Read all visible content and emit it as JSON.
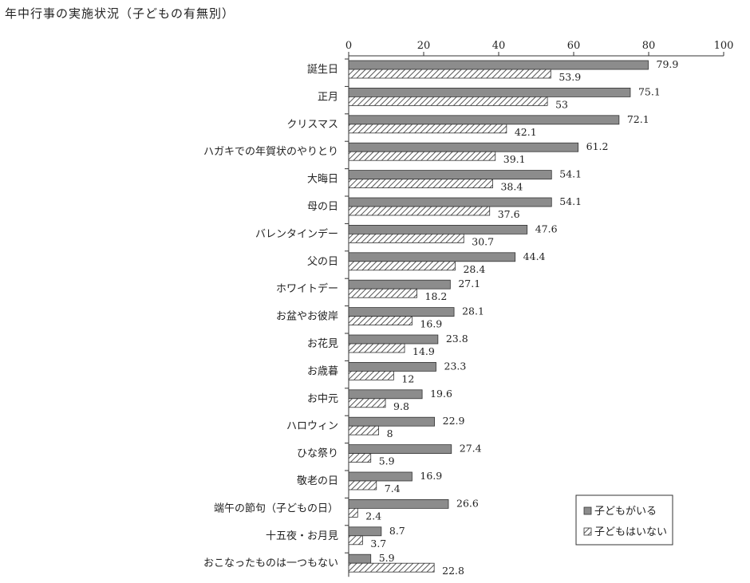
{
  "chart_data": {
    "type": "bar",
    "orientation": "horizontal",
    "title": "年中行事の実施状況（子どもの有無別）",
    "categories": [
      "誕生日",
      "正月",
      "クリスマス",
      "ハガキでの年賀状のやりとり",
      "大晦日",
      "母の日",
      "バレンタインデー",
      "父の日",
      "ホワイトデー",
      "お盆やお彼岸",
      "お花見",
      "お歳暮",
      "お中元",
      "ハロウィン",
      "ひな祭り",
      "敬老の日",
      "端午の節句（子どもの日）",
      "十五夜・お月見",
      "おこなったものは一つもない"
    ],
    "series": [
      {
        "name": "子どもがいる",
        "values": [
          79.9,
          75.1,
          72.1,
          61.2,
          54.1,
          54.1,
          47.6,
          44.4,
          27.1,
          28.1,
          23.8,
          23.3,
          19.6,
          22.9,
          27.4,
          16.9,
          26.6,
          8.7,
          5.9
        ],
        "labels": [
          "79.9",
          "75.1",
          "72.1",
          "61.2",
          "54.1",
          "54.1",
          "47.6",
          "44.4",
          "27.1",
          "28.1",
          "23.8",
          "23.3",
          "19.6",
          "22.9",
          "27.4",
          "16.9",
          "26.6",
          "8.7",
          "5.9"
        ]
      },
      {
        "name": "子どもはいない",
        "values": [
          53.9,
          53,
          42.1,
          39.1,
          38.4,
          37.6,
          30.7,
          28.4,
          18.2,
          16.9,
          14.9,
          12,
          9.8,
          8,
          5.9,
          7.4,
          2.4,
          3.7,
          22.8
        ],
        "labels": [
          "53.9",
          "53",
          "42.1",
          "39.1",
          "38.4",
          "37.6",
          "30.7",
          "28.4",
          "18.2",
          "16.9",
          "14.9",
          "12",
          "9.8",
          "8",
          "5.9",
          "7.4",
          "2.4",
          "3.7",
          "22.8"
        ]
      }
    ],
    "xlim": [
      0,
      100
    ],
    "xticks": [
      0,
      20,
      40,
      60,
      80,
      100
    ],
    "xtick_labels": [
      "0",
      "20",
      "40",
      "60",
      "80",
      "100"
    ],
    "xaxis_position": "top",
    "grid": false,
    "legend_position": "bottom-right",
    "colors": {
      "with_children": "#8c8c8c",
      "without_children_hatch": "#555555",
      "axis": "#333333"
    }
  }
}
